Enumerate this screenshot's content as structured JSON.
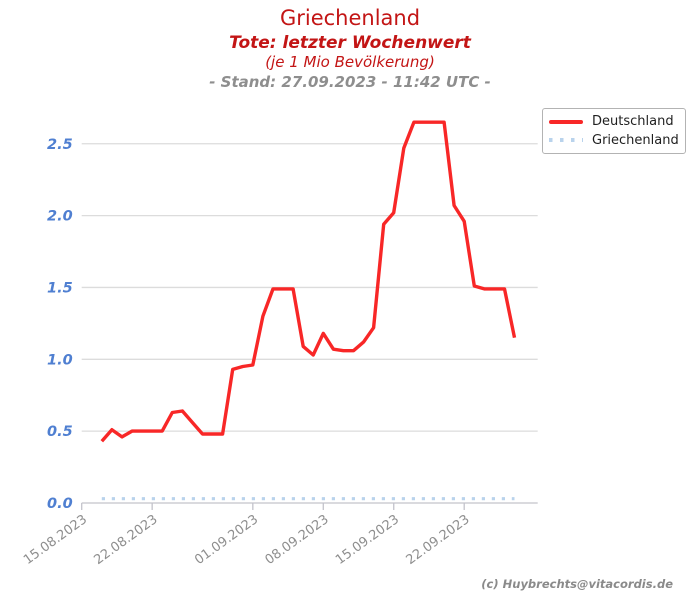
{
  "header": {
    "title": "Griechenland",
    "subtitle_bold": "Tote: letzter Wochenwert",
    "subtitle_italic": "(je 1 Mio Bevölkerung)",
    "stand_line": "- Stand: 27.09.2023 - 11:42 UTC -"
  },
  "watermark": "(c) Huybrechts@vitacordis.de",
  "legend": {
    "items": [
      {
        "label": "Deutschland",
        "style": "solid",
        "color": "#f82727"
      },
      {
        "label": "Griechenland",
        "style": "dotted",
        "color": "#b9d3ec"
      }
    ]
  },
  "colors": {
    "title_red": "#c31515",
    "stand_gray": "#8e8e8e",
    "axis_value_blue": "#4f7fd1",
    "tick_label_gray": "#8e8e8e",
    "gridline": "#dcdcdc",
    "spine": "#c3c3cb",
    "deutschland_line": "#f82727",
    "griechenland_line": "#b9d3ec"
  },
  "chart_data": {
    "type": "line",
    "title": "Griechenland",
    "subtitle": "Tote: letzter Wochenwert (je 1 Mio Bevölkerung)",
    "grid": true,
    "legend_position": "top-right",
    "ylim": [
      0,
      2.78
    ],
    "yticks": [
      0.0,
      0.5,
      1.0,
      1.5,
      2.0,
      2.5
    ],
    "x_tick_labels": [
      "15.08.2023",
      "22.08.2023",
      "01.09.2023",
      "08.09.2023",
      "15.09.2023",
      "22.09.2023"
    ],
    "x_tick_day_offsets": [
      0,
      7,
      17,
      24,
      31,
      38
    ],
    "x_axis_span_days": [
      0,
      45.3
    ],
    "series_start_day_offset": 2,
    "series": [
      {
        "name": "Deutschland",
        "style": "solid",
        "values": [
          0.43,
          0.51,
          0.46,
          0.5,
          0.5,
          0.5,
          0.5,
          0.63,
          0.64,
          0.56,
          0.48,
          0.48,
          0.48,
          0.93,
          0.95,
          0.96,
          1.3,
          1.49,
          1.49,
          1.49,
          1.09,
          1.03,
          1.18,
          1.07,
          1.06,
          1.06,
          1.12,
          1.22,
          1.94,
          2.02,
          2.47,
          2.65,
          2.65,
          2.65,
          2.65,
          2.07,
          1.96,
          1.51,
          1.49,
          1.49,
          1.49,
          1.15
        ]
      },
      {
        "name": "Griechenland",
        "style": "dotted",
        "values": [
          0.03,
          0.03,
          0.03,
          0.03,
          0.03,
          0.03,
          0.03,
          0.03,
          0.03,
          0.03,
          0.03,
          0.03,
          0.03,
          0.03,
          0.03,
          0.03,
          0.03,
          0.03,
          0.03,
          0.03,
          0.03,
          0.03,
          0.03,
          0.03,
          0.03,
          0.03,
          0.03,
          0.03,
          0.03,
          0.03,
          0.03,
          0.03,
          0.03,
          0.03,
          0.03,
          0.03,
          0.03,
          0.03,
          0.03,
          0.03,
          0.03,
          0.03
        ]
      }
    ]
  }
}
